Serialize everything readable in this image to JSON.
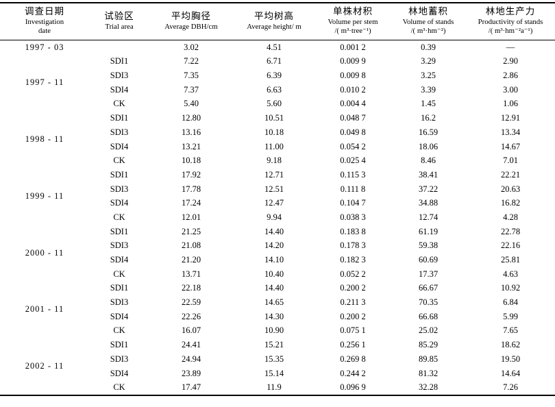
{
  "table": {
    "columns": [
      {
        "zh": "调查日期",
        "en1": "Investigation",
        "en2": "date"
      },
      {
        "zh": "试验区",
        "en1": "Trial area"
      },
      {
        "zh": "平均胸径",
        "en1": "Average DBH/cm"
      },
      {
        "zh": "平均树高",
        "en1": "Average height/ m"
      },
      {
        "zh": "单株材积",
        "en1": "Volume per stem",
        "unit": "/( m³·tree⁻¹)"
      },
      {
        "zh": "林地蓄积",
        "en1": "Volume of stands",
        "unit": "/( m³·hm⁻²)"
      },
      {
        "zh": "林地生产力",
        "en1": "Productivity of stands",
        "unit": "/( m³·hm⁻²a⁻¹)"
      }
    ],
    "missing_value": "—",
    "groups": [
      {
        "date": "1997 - 03",
        "rows": [
          {
            "area": "",
            "dbh": "3.02",
            "height": "4.51",
            "stem_volume": "0.001 2",
            "stand_volume": "0.39",
            "productivity": "—"
          }
        ]
      },
      {
        "date": "1997 - 11",
        "rows": [
          {
            "area": "SDI1",
            "dbh": "7.22",
            "height": "6.71",
            "stem_volume": "0.009 9",
            "stand_volume": "3.29",
            "productivity": "2.90"
          },
          {
            "area": "SDI3",
            "dbh": "7.35",
            "height": "6.39",
            "stem_volume": "0.009 8",
            "stand_volume": "3.25",
            "productivity": "2.86"
          },
          {
            "area": "SDI4",
            "dbh": "7.37",
            "height": "6.63",
            "stem_volume": "0.010 2",
            "stand_volume": "3.39",
            "productivity": "3.00"
          },
          {
            "area": "CK",
            "dbh": "5.40",
            "height": "5.60",
            "stem_volume": "0.004 4",
            "stand_volume": "1.45",
            "productivity": "1.06"
          }
        ]
      },
      {
        "date": "1998 - 11",
        "rows": [
          {
            "area": "SDI1",
            "dbh": "12.80",
            "height": "10.51",
            "stem_volume": "0.048 7",
            "stand_volume": "16.2",
            "productivity": "12.91"
          },
          {
            "area": "SDI3",
            "dbh": "13.16",
            "height": "10.18",
            "stem_volume": "0.049 8",
            "stand_volume": "16.59",
            "productivity": "13.34"
          },
          {
            "area": "SDI4",
            "dbh": "13.21",
            "height": "11.00",
            "stem_volume": "0.054 2",
            "stand_volume": "18.06",
            "productivity": "14.67"
          },
          {
            "area": "CK",
            "dbh": "10.18",
            "height": "9.18",
            "stem_volume": "0.025 4",
            "stand_volume": "8.46",
            "productivity": "7.01"
          }
        ]
      },
      {
        "date": "1999 - 11",
        "rows": [
          {
            "area": "SDI1",
            "dbh": "17.92",
            "height": "12.71",
            "stem_volume": "0.115 3",
            "stand_volume": "38.41",
            "productivity": "22.21"
          },
          {
            "area": "SDI3",
            "dbh": "17.78",
            "height": "12.51",
            "stem_volume": "0.111 8",
            "stand_volume": "37.22",
            "productivity": "20.63"
          },
          {
            "area": "SDI4",
            "dbh": "17.24",
            "height": "12.47",
            "stem_volume": "0.104 7",
            "stand_volume": "34.88",
            "productivity": "16.82"
          },
          {
            "area": "CK",
            "dbh": "12.01",
            "height": "9.94",
            "stem_volume": "0.038 3",
            "stand_volume": "12.74",
            "productivity": "4.28"
          }
        ]
      },
      {
        "date": "2000 - 11",
        "rows": [
          {
            "area": "SDI1",
            "dbh": "21.25",
            "height": "14.40",
            "stem_volume": "0.183 8",
            "stand_volume": "61.19",
            "productivity": "22.78"
          },
          {
            "area": "SDI3",
            "dbh": "21.08",
            "height": "14.20",
            "stem_volume": "0.178 3",
            "stand_volume": "59.38",
            "productivity": "22.16"
          },
          {
            "area": "SDI4",
            "dbh": "21.20",
            "height": "14.10",
            "stem_volume": "0.182 3",
            "stand_volume": "60.69",
            "productivity": "25.81"
          },
          {
            "area": "CK",
            "dbh": "13.71",
            "height": "10.40",
            "stem_volume": "0.052 2",
            "stand_volume": "17.37",
            "productivity": "4.63"
          }
        ]
      },
      {
        "date": "2001 - 11",
        "rows": [
          {
            "area": "SDI1",
            "dbh": "22.18",
            "height": "14.40",
            "stem_volume": "0.200 2",
            "stand_volume": "66.67",
            "productivity": "10.92"
          },
          {
            "area": "SDI3",
            "dbh": "22.59",
            "height": "14.65",
            "stem_volume": "0.211 3",
            "stand_volume": "70.35",
            "productivity": "6.84"
          },
          {
            "area": "SDI4",
            "dbh": "22.26",
            "height": "14.30",
            "stem_volume": "0.200 2",
            "stand_volume": "66.68",
            "productivity": "5.99"
          },
          {
            "area": "CK",
            "dbh": "16.07",
            "height": "10.90",
            "stem_volume": "0.075 1",
            "stand_volume": "25.02",
            "productivity": "7.65"
          }
        ]
      },
      {
        "date": "2002 - 11",
        "rows": [
          {
            "area": "SDI1",
            "dbh": "24.41",
            "height": "15.21",
            "stem_volume": "0.256 1",
            "stand_volume": "85.29",
            "productivity": "18.62"
          },
          {
            "area": "SDI3",
            "dbh": "24.94",
            "height": "15.35",
            "stem_volume": "0.269 8",
            "stand_volume": "89.85",
            "productivity": "19.50"
          },
          {
            "area": "SDI4",
            "dbh": "23.89",
            "height": "15.14",
            "stem_volume": "0.244 2",
            "stand_volume": "81.32",
            "productivity": "14.64"
          },
          {
            "area": "CK",
            "dbh": "17.47",
            "height": "11.9",
            "stem_volume": "0.096 9",
            "stand_volume": "32.28",
            "productivity": "7.26"
          }
        ]
      }
    ]
  }
}
